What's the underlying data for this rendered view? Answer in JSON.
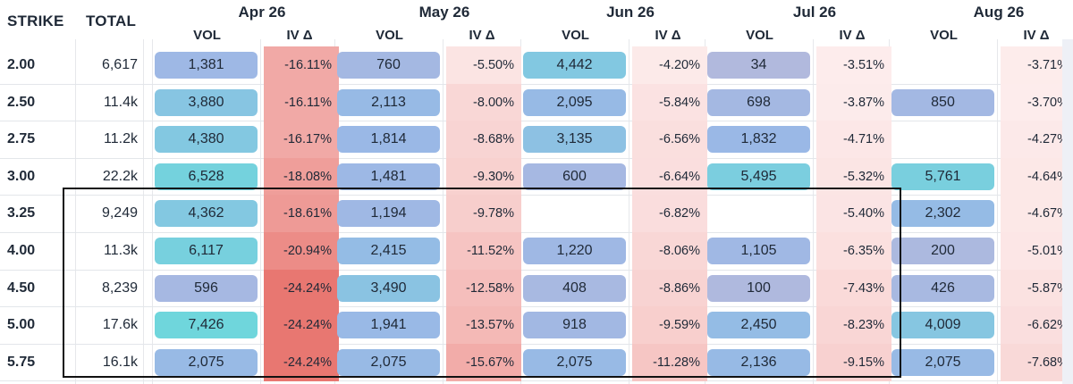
{
  "header": {
    "strike_label": "STRIKE",
    "total_label": "TOTAL",
    "vol_label": "VOL",
    "iv_label": "IV Δ"
  },
  "months": [
    "Apr 26",
    "May 26",
    "Jun 26",
    "Jul 26",
    "Aug 26"
  ],
  "rows": [
    {
      "strike": "2.00",
      "total": "6,617",
      "vols": [
        "1,381",
        "760",
        "4,442",
        "34",
        ""
      ],
      "ivs": [
        "-16.11%",
        "-5.50%",
        "-4.20%",
        "-3.51%",
        "-3.71%"
      ]
    },
    {
      "strike": "2.50",
      "total": "11.4k",
      "vols": [
        "3,880",
        "2,113",
        "2,095",
        "698",
        "850"
      ],
      "ivs": [
        "-16.11%",
        "-8.00%",
        "-5.84%",
        "-3.87%",
        "-3.70%"
      ]
    },
    {
      "strike": "2.75",
      "total": "11.2k",
      "vols": [
        "4,380",
        "1,814",
        "3,135",
        "1,832",
        ""
      ],
      "ivs": [
        "-16.17%",
        "-8.68%",
        "-6.56%",
        "-4.71%",
        "-4.27%"
      ]
    },
    {
      "strike": "3.00",
      "total": "22.2k",
      "vols": [
        "6,528",
        "1,481",
        "600",
        "5,495",
        "5,761"
      ],
      "ivs": [
        "-18.08%",
        "-9.30%",
        "-6.64%",
        "-5.32%",
        "-4.64%"
      ]
    },
    {
      "strike": "3.25",
      "total": "9,249",
      "vols": [
        "4,362",
        "1,194",
        "",
        "",
        "2,302"
      ],
      "ivs": [
        "-18.61%",
        "-9.78%",
        "-6.82%",
        "-5.40%",
        "-4.67%"
      ]
    },
    {
      "strike": "4.00",
      "total": "11.3k",
      "vols": [
        "6,117",
        "2,415",
        "1,220",
        "1,105",
        "200"
      ],
      "ivs": [
        "-20.94%",
        "-11.52%",
        "-8.06%",
        "-6.35%",
        "-5.01%"
      ]
    },
    {
      "strike": "4.50",
      "total": "8,239",
      "vols": [
        "596",
        "3,490",
        "408",
        "100",
        "426"
      ],
      "ivs": [
        "-24.24%",
        "-12.58%",
        "-8.86%",
        "-7.43%",
        "-5.87%"
      ]
    },
    {
      "strike": "5.00",
      "total": "17.6k",
      "vols": [
        "7,426",
        "1,941",
        "918",
        "2,450",
        "4,009"
      ],
      "ivs": [
        "-24.24%",
        "-13.57%",
        "-9.59%",
        "-8.23%",
        "-6.62%"
      ]
    },
    {
      "strike": "5.75",
      "total": "16.1k",
      "vols": [
        "2,075",
        "2,075",
        "2,075",
        "2,136",
        "2,075"
      ],
      "ivs": [
        "-24.24%",
        "-15.67%",
        "-11.28%",
        "-9.15%",
        "-7.68%"
      ]
    }
  ],
  "colors": {
    "vol_low": "#b5b9dc",
    "vol_mid": "#9ab8e6",
    "vol_high": "#6fd6dc",
    "iv_weak": "#fdeeee",
    "iv_strong": "#e8756f",
    "highlight_border": "#111111"
  }
}
